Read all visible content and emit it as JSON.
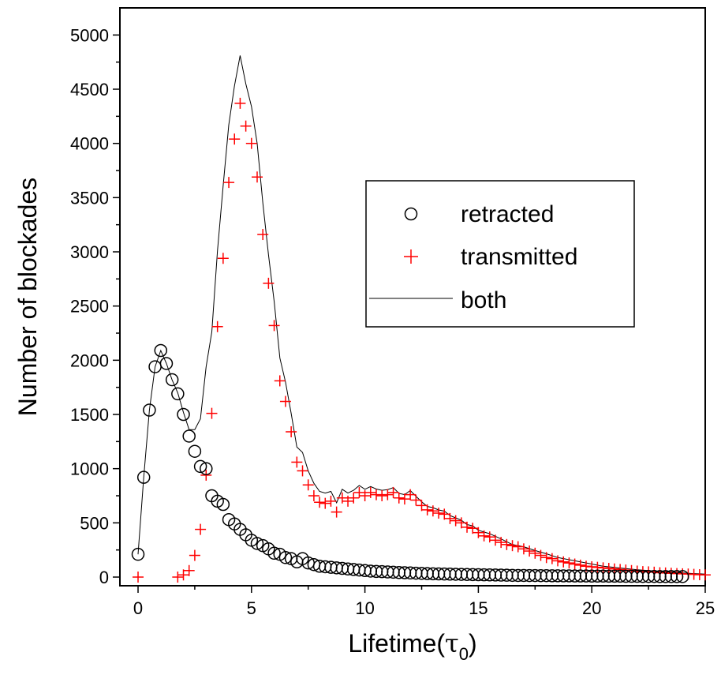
{
  "chart_data": {
    "type": "scatter",
    "xlabel": "Lifetime(τ0)",
    "xlabel_main": "Lifetime(",
    "xlabel_symbol": "τ",
    "xlabel_sub": "0",
    "xlabel_close": ")",
    "ylabel": "Number of blockades",
    "xlim": [
      -0.8,
      25
    ],
    "ylim": [
      -80,
      5250
    ],
    "xticks": [
      0,
      5,
      10,
      15,
      20,
      25
    ],
    "yticks": [
      0,
      500,
      1000,
      1500,
      2000,
      2500,
      3000,
      3500,
      4000,
      4500,
      5000
    ],
    "grid": false,
    "legend_position": "top-right",
    "series": [
      {
        "name": "retracted",
        "marker": "circle",
        "color": "#000000",
        "x": [
          0,
          0.25,
          0.5,
          0.75,
          1.0,
          1.25,
          1.5,
          1.75,
          2.0,
          2.25,
          2.5,
          2.75,
          3.0,
          3.25,
          3.5,
          3.75,
          4.0,
          4.25,
          4.5,
          4.75,
          5.0,
          5.25,
          5.5,
          5.75,
          6.0,
          6.25,
          6.5,
          6.75,
          7.0,
          7.25,
          7.5,
          7.75,
          8.0,
          8.25,
          8.5,
          8.75,
          9.0,
          9.25,
          9.5,
          9.75,
          10.0,
          10.25,
          10.5,
          10.75,
          11.0,
          11.25,
          11.5,
          11.75,
          12.0,
          12.25,
          12.5,
          12.75,
          13.0,
          13.25,
          13.5,
          13.75,
          14.0,
          14.25,
          14.5,
          14.75,
          15.0,
          15.25,
          15.5,
          15.75,
          16.0,
          16.25,
          16.5,
          16.75,
          17.0,
          17.25,
          17.5,
          17.75,
          18.0,
          18.25,
          18.5,
          18.75,
          19.0,
          19.25,
          19.5,
          19.75,
          20.0,
          20.25,
          20.5,
          20.75,
          21.0,
          21.25,
          21.5,
          21.75,
          22.0,
          22.25,
          22.5,
          22.75,
          23.0,
          23.25,
          23.5,
          23.75,
          24.0
        ],
        "y": [
          210,
          920,
          1540,
          1940,
          2090,
          1970,
          1820,
          1690,
          1500,
          1300,
          1160,
          1020,
          1000,
          750,
          700,
          670,
          530,
          490,
          440,
          390,
          340,
          310,
          290,
          260,
          220,
          210,
          180,
          170,
          140,
          170,
          130,
          115,
          100,
          95,
          90,
          85,
          80,
          75,
          70,
          65,
          60,
          55,
          52,
          50,
          47,
          45,
          42,
          40,
          38,
          36,
          34,
          32,
          30,
          29,
          28,
          27,
          26,
          25,
          24,
          23,
          22,
          21,
          20,
          19,
          18,
          17,
          16,
          15,
          15,
          14,
          14,
          13,
          13,
          12,
          12,
          11,
          11,
          10,
          10,
          10,
          9,
          9,
          9,
          8,
          8,
          8,
          7,
          7,
          7,
          6,
          6,
          6,
          5,
          5,
          5,
          5,
          5
        ]
      },
      {
        "name": "transmitted",
        "marker": "plus",
        "color": "#ff0000",
        "x": [
          0,
          1.75,
          2.0,
          2.25,
          2.5,
          2.75,
          3.0,
          3.25,
          3.5,
          3.75,
          4.0,
          4.25,
          4.5,
          4.75,
          5.0,
          5.25,
          5.5,
          5.75,
          6.0,
          6.25,
          6.5,
          6.75,
          7.0,
          7.25,
          7.5,
          7.75,
          8.0,
          8.25,
          8.5,
          8.75,
          9.0,
          9.25,
          9.5,
          9.75,
          10.0,
          10.25,
          10.5,
          10.75,
          11.0,
          11.25,
          11.5,
          11.75,
          12.0,
          12.25,
          12.5,
          12.75,
          13.0,
          13.25,
          13.5,
          13.75,
          14.0,
          14.25,
          14.5,
          14.75,
          15.0,
          15.25,
          15.5,
          15.75,
          16.0,
          16.25,
          16.5,
          16.75,
          17.0,
          17.25,
          17.5,
          17.75,
          18.0,
          18.25,
          18.5,
          18.75,
          19.0,
          19.25,
          19.5,
          19.75,
          20.0,
          20.25,
          20.5,
          20.75,
          21.0,
          21.25,
          21.5,
          21.75,
          22.0,
          22.25,
          22.5,
          22.75,
          23.0,
          23.25,
          23.5,
          23.75,
          24.0,
          24.25,
          24.5,
          24.75,
          25.0
        ],
        "y": [
          0,
          0,
          20,
          60,
          200,
          440,
          940,
          1510,
          2310,
          2940,
          3640,
          4040,
          4370,
          4160,
          4000,
          3690,
          3160,
          2710,
          2320,
          1810,
          1620,
          1340,
          1060,
          980,
          850,
          750,
          690,
          680,
          700,
          600,
          730,
          700,
          730,
          780,
          750,
          780,
          760,
          750,
          760,
          780,
          730,
          720,
          760,
          710,
          660,
          620,
          610,
          590,
          580,
          540,
          520,
          500,
          460,
          450,
          410,
          380,
          370,
          340,
          320,
          300,
          290,
          280,
          260,
          240,
          220,
          200,
          180,
          170,
          150,
          140,
          130,
          120,
          110,
          100,
          95,
          90,
          85,
          80,
          75,
          70,
          65,
          60,
          55,
          50,
          48,
          45,
          40,
          38,
          35,
          32,
          30,
          28,
          25,
          22,
          20
        ]
      },
      {
        "name": "both",
        "marker": "line",
        "color": "#000000",
        "x": [
          0,
          0.25,
          0.5,
          0.75,
          1.0,
          1.25,
          1.5,
          1.75,
          2.0,
          2.25,
          2.5,
          2.75,
          3.0,
          3.25,
          3.5,
          3.75,
          4.0,
          4.25,
          4.5,
          4.75,
          5.0,
          5.25,
          5.5,
          5.75,
          6.0,
          6.25,
          6.5,
          6.75,
          7.0,
          7.25,
          7.5,
          7.75,
          8.0,
          8.25,
          8.5,
          8.75,
          9.0,
          9.25,
          9.5,
          9.75,
          10.0,
          10.25,
          10.5,
          10.75,
          11.0,
          11.25,
          11.5,
          11.75,
          12.0,
          12.25,
          12.5,
          12.75,
          13.0,
          13.25,
          13.5,
          13.75,
          14.0,
          14.25,
          14.5,
          14.75,
          15.0,
          15.5,
          16.0,
          16.5,
          17.0,
          17.5,
          18.0,
          18.5,
          19.0,
          19.5,
          20.0,
          20.5,
          21.0,
          21.5,
          22.0,
          22.5,
          23.0,
          23.5,
          24.0,
          24.5,
          25.0
        ],
        "y": [
          210,
          920,
          1540,
          1940,
          2090,
          1970,
          1820,
          1700,
          1520,
          1360,
          1360,
          1460,
          1940,
          2260,
          3010,
          3610,
          4170,
          4530,
          4810,
          4550,
          4340,
          4000,
          3450,
          2970,
          2540,
          2020,
          1800,
          1510,
          1200,
          1150,
          980,
          865,
          790,
          775,
          790,
          685,
          810,
          775,
          800,
          845,
          810,
          835,
          812,
          800,
          807,
          825,
          772,
          760,
          798,
          746,
          694,
          652,
          640,
          619,
          608,
          567,
          546,
          525,
          484,
          473,
          432,
          400,
          352,
          300,
          280,
          245,
          215,
          180,
          160,
          140,
          120,
          100,
          90,
          78,
          68,
          60,
          52,
          45,
          38,
          32,
          28
        ]
      }
    ]
  }
}
